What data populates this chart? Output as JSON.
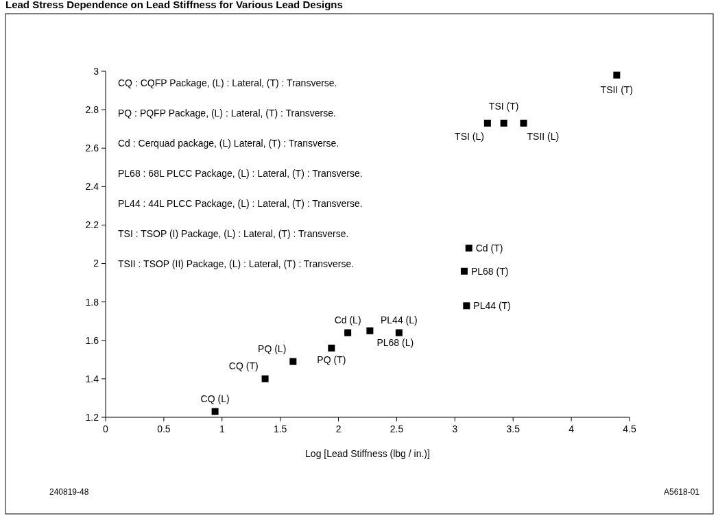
{
  "chart_data": {
    "type": "scatter",
    "title": "Lead Stress Dependence on Lead Stiffness for Various Lead Designs",
    "xlabel": "Log [Lead Stiffness (lbg / in.)]",
    "x": [
      0.94,
      1.37,
      1.61,
      1.94,
      2.08,
      2.27,
      2.52,
      3.1,
      3.08,
      3.12,
      3.28,
      3.42,
      3.59,
      4.39
    ],
    "series": [
      {
        "color": "#000000",
        "values": [
          1.23,
          1.4,
          1.49,
          1.56,
          1.64,
          1.65,
          1.64,
          1.78,
          1.96,
          2.08,
          2.73,
          2.73,
          2.73,
          2.98
        ]
      }
    ],
    "marker": "square",
    "xlim": [
      0,
      4.5
    ],
    "ylim": [
      1.2,
      3
    ],
    "xticks": [
      0,
      0.5,
      1,
      1.5,
      2,
      2.5,
      3,
      3.5,
      4,
      4.5
    ],
    "yticks": [
      1.2,
      1.4,
      1.6,
      1.8,
      2,
      2.2,
      2.4,
      2.6,
      2.8,
      3
    ],
    "annotations": [
      "CQ : CQFP Package, (L) : Lateral, (T) : Transverse.",
      "PQ : PQFP Package, (L) : Lateral, (T) : Transverse.",
      "Cd : Cerquad package, (L) Lateral, (T) : Transverse.",
      "PL68 : 68L PLCC Package, (L) : Lateral, (T) : Transverse.",
      "PL44 : 44L PLCC Package, (L) : Lateral, (T) : Transverse.",
      "TSI : TSOP (I) Package, (L) : Lateral, (T) : Transverse.",
      "TSII : TSOP (II) Package, (L) : Lateral, (T) : Transverse.",
      "240819-48",
      "A5618-01",
      {
        "text": "CQ (L)",
        "x": 0.94,
        "y": 1.23
      },
      {
        "text": "CQ (T)",
        "x": 1.37,
        "y": 1.4
      },
      {
        "text": "PQ (L)",
        "x": 1.61,
        "y": 1.49
      },
      {
        "text": "PQ (T)",
        "x": 1.94,
        "y": 1.56
      },
      {
        "text": "Cd (L)",
        "x": 2.08,
        "y": 1.64
      },
      {
        "text": "PL68 (L)",
        "x": 2.27,
        "y": 1.65
      },
      {
        "text": "PL44 (L)",
        "x": 2.52,
        "y": 1.64
      },
      {
        "text": "PL44 (T)",
        "x": 3.1,
        "y": 1.78
      },
      {
        "text": "PL68 (T)",
        "x": 3.08,
        "y": 1.96
      },
      {
        "text": "Cd (T)",
        "x": 3.12,
        "y": 2.08
      },
      {
        "text": "TSI (L)",
        "x": 3.28,
        "y": 2.73
      },
      {
        "text": "TSI (T)",
        "x": 3.42,
        "y": 2.73
      },
      {
        "text": "TSII (L)",
        "x": 3.59,
        "y": 2.73
      },
      {
        "text": "TSII (T)",
        "x": 4.39,
        "y": 2.98
      }
    ]
  }
}
